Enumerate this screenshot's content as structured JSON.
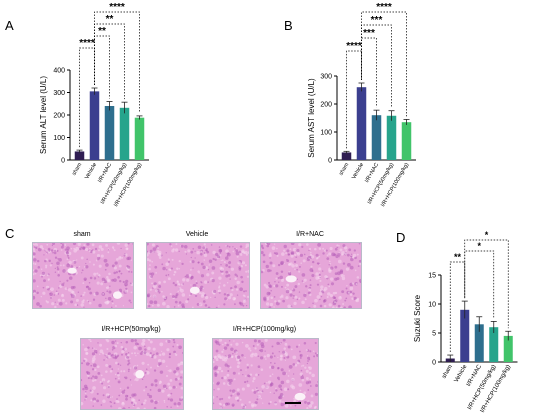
{
  "panels": {
    "A": "A",
    "B": "B",
    "C": "C",
    "D": "D"
  },
  "colors": {
    "sham": "#2f1d52",
    "vehicle": "#3b3f8f",
    "nac": "#2e6f8e",
    "hcp50": "#27a48c",
    "hcp100": "#41c46a",
    "tissue_base": "#e6a6d9",
    "tissue_dark": "#b55cb8",
    "tissue_light": "#f5d7ef"
  },
  "histology": [
    {
      "label": "sham"
    },
    {
      "label": "Vehicle"
    },
    {
      "label": "I/R+NAC"
    },
    {
      "label": "I/R+HCP(50mg/kg)"
    },
    {
      "label": "I/R+HCP(100mg/kg)"
    }
  ],
  "chart_data": [
    {
      "type": "bar",
      "panel": "A",
      "ylabel": "Serum ALT level (U/L)",
      "ylim": [
        0,
        400
      ],
      "yticks": [
        "0",
        "100",
        "200",
        "300",
        "400"
      ],
      "categories": [
        "sham",
        "Vehicle",
        "I/R+NAC",
        "I/R+HCP(50mg/kg)",
        "I/R+HCP(100mg/kg)"
      ],
      "values": [
        38,
        305,
        240,
        232,
        188
      ],
      "errors": [
        6,
        15,
        20,
        25,
        8
      ],
      "significance": [
        {
          "from": "sham",
          "to": "Vehicle",
          "label": "****"
        },
        {
          "from": "Vehicle",
          "to": "I/R+NAC",
          "label": "**"
        },
        {
          "from": "Vehicle",
          "to": "I/R+HCP(50mg/kg)",
          "label": "**"
        },
        {
          "from": "Vehicle",
          "to": "I/R+HCP(100mg/kg)",
          "label": "****"
        }
      ]
    },
    {
      "type": "bar",
      "panel": "B",
      "ylabel": "Serum AST level (U/L)",
      "ylim": [
        0,
        300
      ],
      "yticks": [
        "0",
        "100",
        "200",
        "300"
      ],
      "categories": [
        "sham",
        "Vehicle",
        "I/R+NAC",
        "I/R+HCP(50mg/kg)",
        "I/R+HCP(100mg/kg)"
      ],
      "values": [
        27,
        260,
        160,
        158,
        135
      ],
      "errors": [
        4,
        15,
        18,
        18,
        10
      ],
      "significance": [
        {
          "from": "sham",
          "to": "Vehicle",
          "label": "****"
        },
        {
          "from": "Vehicle",
          "to": "I/R+NAC",
          "label": "***"
        },
        {
          "from": "Vehicle",
          "to": "I/R+HCP(50mg/kg)",
          "label": "***"
        },
        {
          "from": "Vehicle",
          "to": "I/R+HCP(100mg/kg)",
          "label": "****"
        }
      ]
    },
    {
      "type": "bar",
      "panel": "D",
      "ylabel": "Suzuki Score",
      "ylim": [
        0,
        15
      ],
      "yticks": [
        "0",
        "5",
        "10",
        "15"
      ],
      "categories": [
        "sham",
        "Vehicle",
        "I/R+NAC",
        "I/R+HCP(50mg/kg)",
        "I/R+HCP(100mg/kg)"
      ],
      "values": [
        0.6,
        9.0,
        6.5,
        6.0,
        4.5
      ],
      "errors": [
        0.6,
        1.5,
        1.3,
        1.0,
        0.8
      ],
      "significance": [
        {
          "from": "sham",
          "to": "Vehicle",
          "label": "**"
        },
        {
          "from": "Vehicle",
          "to": "I/R+HCP(50mg/kg)",
          "label": "*"
        },
        {
          "from": "Vehicle",
          "to": "I/R+HCP(100mg/kg)",
          "label": "*"
        }
      ]
    }
  ]
}
